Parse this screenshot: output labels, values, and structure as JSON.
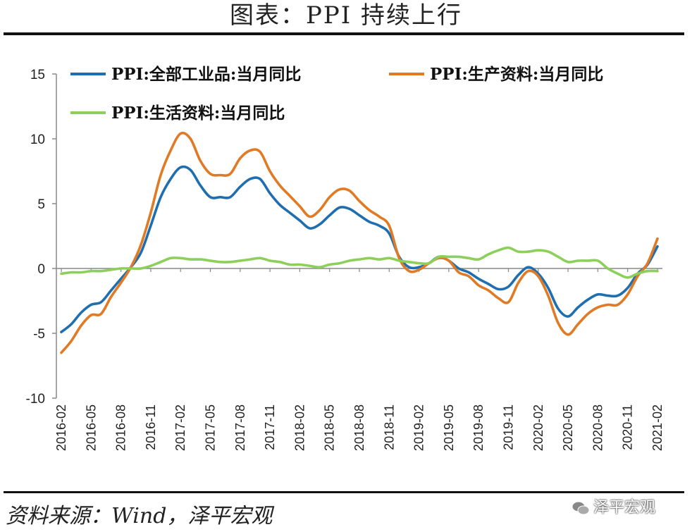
{
  "header": {
    "title": "图表：PPI 持续上行"
  },
  "footer": {
    "source": "资料来源：Wind，泽平宏观",
    "watermark": "泽平宏观"
  },
  "colors": {
    "all_industry": "#1f6fb0",
    "means_of_production": "#e07a24",
    "consumer_goods": "#8ccf5a"
  },
  "chart_data": {
    "type": "line",
    "title": "",
    "xlabel": "",
    "ylabel": "",
    "ylim": [
      -10,
      15
    ],
    "yticks": [
      15,
      10,
      5,
      0,
      -5,
      -10
    ],
    "x": [
      "2016-02",
      "2016-03",
      "2016-04",
      "2016-05",
      "2016-06",
      "2016-07",
      "2016-08",
      "2016-09",
      "2016-10",
      "2016-11",
      "2016-12",
      "2017-01",
      "2017-02",
      "2017-03",
      "2017-04",
      "2017-05",
      "2017-06",
      "2017-07",
      "2017-08",
      "2017-09",
      "2017-10",
      "2017-11",
      "2017-12",
      "2018-01",
      "2018-02",
      "2018-03",
      "2018-04",
      "2018-05",
      "2018-06",
      "2018-07",
      "2018-08",
      "2018-09",
      "2018-10",
      "2018-11",
      "2018-12",
      "2019-01",
      "2019-02",
      "2019-03",
      "2019-04",
      "2019-05",
      "2019-06",
      "2019-07",
      "2019-08",
      "2019-09",
      "2019-10",
      "2019-11",
      "2019-12",
      "2020-01",
      "2020-02",
      "2020-03",
      "2020-04",
      "2020-05",
      "2020-06",
      "2020-07",
      "2020-08",
      "2020-09",
      "2020-10",
      "2020-11",
      "2020-12",
      "2021-01",
      "2021-02"
    ],
    "xtick_labels": [
      "2016-02",
      "2016-05",
      "2016-08",
      "2016-11",
      "2017-02",
      "2017-05",
      "2017-08",
      "2017-11",
      "2018-02",
      "2018-05",
      "2018-08",
      "2018-11",
      "2019-02",
      "2019-05",
      "2019-08",
      "2019-11",
      "2020-02",
      "2020-05",
      "2020-08",
      "2020-11",
      "2021-02"
    ],
    "legend": "top-left",
    "series": [
      {
        "name": "PPI:全部工业品:当月同比",
        "color_key": "all_industry",
        "values": [
          -4.9,
          -4.3,
          -3.4,
          -2.8,
          -2.6,
          -1.7,
          -0.8,
          0.1,
          1.2,
          3.3,
          5.5,
          6.9,
          7.8,
          7.6,
          6.4,
          5.5,
          5.5,
          5.5,
          6.3,
          6.9,
          6.9,
          5.8,
          4.9,
          4.3,
          3.7,
          3.1,
          3.4,
          4.1,
          4.7,
          4.6,
          4.1,
          3.6,
          3.3,
          2.7,
          0.9,
          0.1,
          0.1,
          0.4,
          0.9,
          0.6,
          0.0,
          -0.3,
          -0.8,
          -1.2,
          -1.6,
          -1.4,
          -0.5,
          0.1,
          -0.4,
          -1.5,
          -3.1,
          -3.7,
          -3.0,
          -2.4,
          -2.0,
          -2.1,
          -2.1,
          -1.5,
          -0.4,
          0.3,
          1.7
        ]
      },
      {
        "name": "PPI:生产资料:当月同比",
        "color_key": "means_of_production",
        "values": [
          -6.5,
          -5.6,
          -4.4,
          -3.6,
          -3.5,
          -2.2,
          -1.1,
          0.1,
          1.8,
          4.3,
          7.2,
          9.1,
          10.4,
          10.0,
          8.3,
          7.3,
          7.2,
          7.3,
          8.5,
          9.1,
          9.0,
          7.5,
          6.4,
          5.6,
          4.8,
          4.0,
          4.5,
          5.5,
          6.1,
          6.0,
          5.2,
          4.5,
          4.0,
          3.3,
          0.8,
          -0.2,
          -0.1,
          0.4,
          0.8,
          0.6,
          -0.3,
          -0.6,
          -1.3,
          -1.7,
          -2.3,
          -2.6,
          -1.1,
          -0.2,
          -0.6,
          -2.1,
          -4.2,
          -5.1,
          -4.3,
          -3.5,
          -3.0,
          -2.8,
          -2.8,
          -2.0,
          -0.6,
          0.4,
          2.3
        ]
      },
      {
        "name": "PPI:生活资料:当月同比",
        "color_key": "consumer_goods",
        "values": [
          -0.4,
          -0.3,
          -0.3,
          -0.2,
          -0.2,
          -0.1,
          0.0,
          0.0,
          0.0,
          0.2,
          0.5,
          0.8,
          0.8,
          0.7,
          0.7,
          0.6,
          0.5,
          0.5,
          0.6,
          0.7,
          0.8,
          0.6,
          0.5,
          0.3,
          0.3,
          0.2,
          0.1,
          0.3,
          0.4,
          0.6,
          0.7,
          0.8,
          0.7,
          0.8,
          0.6,
          0.5,
          0.4,
          0.4,
          0.9,
          0.9,
          0.9,
          0.8,
          0.7,
          1.1,
          1.4,
          1.6,
          1.3,
          1.3,
          1.4,
          1.3,
          0.9,
          0.5,
          0.6,
          0.6,
          0.6,
          0.0,
          -0.4,
          -0.7,
          -0.4,
          -0.2,
          -0.2
        ]
      }
    ]
  }
}
